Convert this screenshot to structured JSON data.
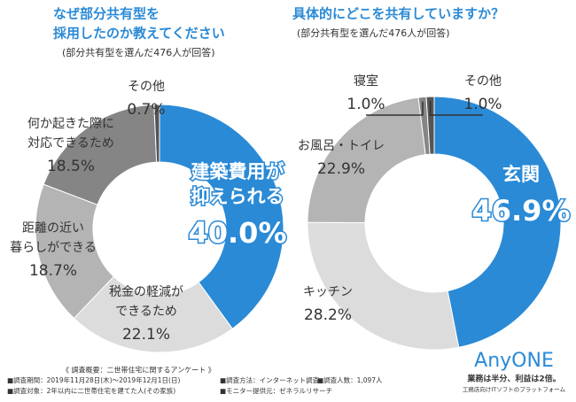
{
  "chart_data": [
    {
      "type": "donut",
      "title": [
        "なぜ部分共有型を",
        "採用したのか教えてください"
      ],
      "subtitle": "(部分共有型を選んだ476人が回答)",
      "categories": [
        [
          "建築費用が",
          "抑えられる"
        ],
        [
          "税金の軽減が",
          "できるため"
        ],
        [
          "距離の近い",
          "暮らしができる"
        ],
        [
          "何か起きた際に",
          "対応できるため"
        ],
        [
          "その他"
        ]
      ],
      "values": [
        40.0,
        22.1,
        18.7,
        18.5,
        0.7
      ],
      "value_labels": [
        "40.0%",
        "22.1%",
        "18.7%",
        "18.5%",
        "0.7%"
      ],
      "colors": [
        "#2a8ad6",
        "#dcdcdc",
        "#b4b4b4",
        "#858585",
        "#555555"
      ]
    },
    {
      "type": "donut",
      "title": [
        "具体的にどこを共有していますか？"
      ],
      "subtitle": "(部分共有型を選んだ476人が回答)",
      "categories": [
        [
          "玄関"
        ],
        [
          "キッチン"
        ],
        [
          "お風呂・トイレ"
        ],
        [
          "寝室"
        ],
        [
          "その他"
        ]
      ],
      "values": [
        46.9,
        28.2,
        22.9,
        1.0,
        1.0
      ],
      "value_labels": [
        "46.9%",
        "28.2%",
        "22.9%",
        "1.0%",
        "1.0%"
      ],
      "colors": [
        "#2a8ad6",
        "#dcdcdc",
        "#b4b4b4",
        "#858585",
        "#555555"
      ]
    }
  ],
  "footer": {
    "heading": "《 調査概要：二世帯住宅に関するアンケート 》",
    "items": [
      "■調査期間：2019年11月28日(木)～2019年12月1日(日)",
      "■調査方法：インターネット調査",
      "■調査人数：1,097人",
      "■調査対象：2年以内に二世帯住宅を建てた人(その家族)",
      "■モニター提供元：ゼネラルリサーチ"
    ]
  },
  "logo": {
    "name": "AnyONE",
    "tagline": "業務は半分、利益は2倍。",
    "sub": "工務店向けITソフトのプラットフォーム"
  }
}
